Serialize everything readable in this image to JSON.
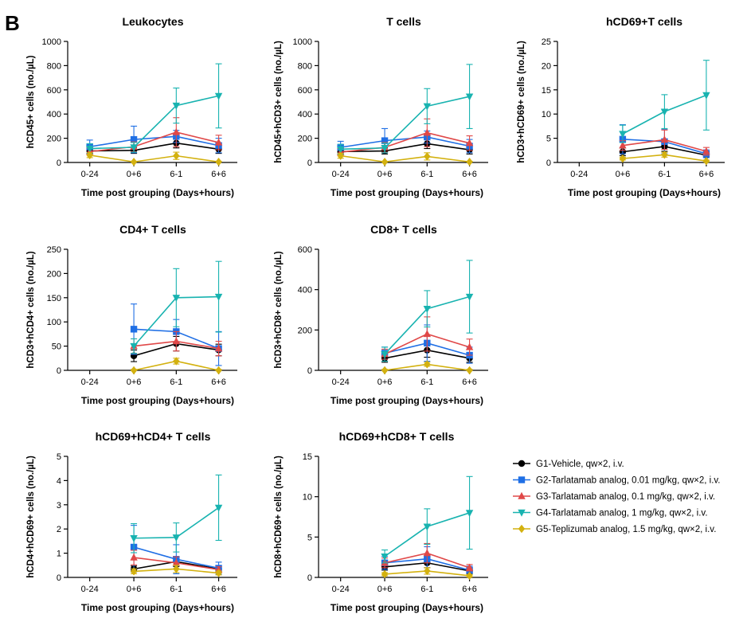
{
  "panel_label": "B",
  "legend": {
    "entries": [
      {
        "label": "G1-Vehicle, qw×2, i.v.",
        "color": "#000000",
        "marker": "circle"
      },
      {
        "label": "G2-Tarlatamab analog, 0.01 mg/kg, qw×2, i.v.",
        "color": "#1f6fe5",
        "marker": "square"
      },
      {
        "label": "G3-Tarlatamab analog, 0.1 mg/kg, qw×2, i.v.",
        "color": "#e04848",
        "marker": "triangle-up"
      },
      {
        "label": "G4-Tarlatamab analog, 1 mg/kg, qw×2, i.v.",
        "color": "#18b3b0",
        "marker": "triangle-down"
      },
      {
        "label": "G5-Teplizumab analog, 1.5 mg/kg, qw×2, i.v.",
        "color": "#d3b10f",
        "marker": "diamond"
      }
    ]
  },
  "chart_data": [
    {
      "type": "line",
      "title": "Leukocytes",
      "ylabel": "hCD45+ cells (no./µL)",
      "xlabel": "Time post grouping (Days+hours)",
      "categories": [
        "0-24",
        "0+6",
        "6-1",
        "6+6"
      ],
      "ylim": [
        0,
        1000
      ],
      "yticks": [
        0,
        200,
        400,
        600,
        800,
        1000
      ],
      "series": [
        {
          "name": "G1-Vehicle, qw×2, i.v.",
          "values": [
            95,
            100,
            160,
            110
          ],
          "errors": [
            20,
            25,
            40,
            35
          ]
        },
        {
          "name": "G2-Tarlatamab analog, 0.01 mg/kg, qw×2, i.v.",
          "values": [
            130,
            190,
            215,
            140
          ],
          "errors": [
            55,
            110,
            50,
            60
          ]
        },
        {
          "name": "G3-Tarlatamab analog, 0.1 mg/kg, qw×2, i.v.",
          "values": [
            90,
            130,
            250,
            165
          ],
          "errors": [
            30,
            40,
            120,
            60
          ]
        },
        {
          "name": "G4-Tarlatamab analog, 1 mg/kg, qw×2, i.v.",
          "values": [
            115,
            125,
            470,
            550
          ],
          "errors": [
            40,
            40,
            145,
            265
          ]
        },
        {
          "name": "G5-Teplizumab analog, 1.5 mg/kg, qw×2, i.v.",
          "values": [
            60,
            5,
            55,
            5
          ],
          "errors": [
            20,
            5,
            30,
            5
          ]
        }
      ]
    },
    {
      "type": "line",
      "title": "T cells",
      "ylabel": "hCD45+hCD3+ cells (no./µL)",
      "xlabel": "Time post grouping (Days+hours)",
      "categories": [
        "0-24",
        "0+6",
        "6-1",
        "6+6"
      ],
      "ylim": [
        0,
        1000
      ],
      "yticks": [
        0,
        200,
        400,
        600,
        800,
        1000
      ],
      "series": [
        {
          "name": "G1-Vehicle, qw×2, i.v.",
          "values": [
            90,
            95,
            155,
            105
          ],
          "errors": [
            20,
            25,
            40,
            35
          ]
        },
        {
          "name": "G2-Tarlatamab analog, 0.01 mg/kg, qw×2, i.v.",
          "values": [
            125,
            180,
            210,
            135
          ],
          "errors": [
            50,
            100,
            50,
            55
          ]
        },
        {
          "name": "G3-Tarlatamab analog, 0.1 mg/kg, qw×2, i.v.",
          "values": [
            85,
            125,
            245,
            160
          ],
          "errors": [
            30,
            40,
            115,
            60
          ]
        },
        {
          "name": "G4-Tarlatamab analog, 1 mg/kg, qw×2, i.v.",
          "values": [
            110,
            120,
            465,
            545
          ],
          "errors": [
            40,
            40,
            145,
            265
          ]
        },
        {
          "name": "G5-Teplizumab analog, 1.5 mg/kg, qw×2, i.v.",
          "values": [
            55,
            5,
            50,
            5
          ],
          "errors": [
            20,
            5,
            30,
            5
          ]
        }
      ]
    },
    {
      "type": "line",
      "title": "hCD69+T cells",
      "ylabel": "hCD3+hCD69+ cells (no./µL)",
      "xlabel": "Time post grouping (Days+hours)",
      "categories": [
        "0-24",
        "0+6",
        "6-1",
        "6+6"
      ],
      "ylim": [
        0,
        25
      ],
      "yticks": [
        0,
        5,
        10,
        15,
        20,
        25
      ],
      "series": [
        {
          "name": "G1-Vehicle, qw×2, i.v.",
          "values": [
            null,
            2.2,
            3.3,
            1.5
          ],
          "errors": [
            null,
            0.8,
            1.0,
            0.5
          ]
        },
        {
          "name": "G2-Tarlatamab analog, 0.01 mg/kg, qw×2, i.v.",
          "values": [
            null,
            4.8,
            4.3,
            1.8
          ],
          "errors": [
            null,
            3.0,
            2.5,
            0.8
          ]
        },
        {
          "name": "G3-Tarlatamab analog, 0.1 mg/kg, qw×2, i.v.",
          "values": [
            null,
            3.5,
            4.7,
            2.3
          ],
          "errors": [
            null,
            1.0,
            2.0,
            0.8
          ]
        },
        {
          "name": "G4-Tarlatamab analog, 1 mg/kg, qw×2, i.v.",
          "values": [
            null,
            5.9,
            10.5,
            13.9
          ],
          "errors": [
            null,
            1.8,
            3.5,
            7.2
          ]
        },
        {
          "name": "G5-Teplizumab analog, 1.5 mg/kg, qw×2, i.v.",
          "values": [
            null,
            0.8,
            1.6,
            0.3
          ],
          "errors": [
            null,
            0.3,
            0.5,
            0.2
          ]
        }
      ]
    },
    {
      "type": "line",
      "title": "CD4+ T cells",
      "ylabel": "hCD3+hCD4+ cells (no./µL)",
      "xlabel": "Time post grouping (Days+hours)",
      "categories": [
        "0-24",
        "0+6",
        "6-1",
        "6+6"
      ],
      "ylim": [
        0,
        250
      ],
      "yticks": [
        0,
        50,
        100,
        150,
        200,
        250
      ],
      "series": [
        {
          "name": "G1-Vehicle, qw×2, i.v.",
          "values": [
            null,
            30,
            55,
            42
          ],
          "errors": [
            null,
            12,
            15,
            12
          ]
        },
        {
          "name": "G2-Tarlatamab analog, 0.01 mg/kg, qw×2, i.v.",
          "values": [
            null,
            85,
            80,
            45
          ],
          "errors": [
            null,
            52,
            25,
            35
          ]
        },
        {
          "name": "G3-Tarlatamab analog, 0.1 mg/kg, qw×2, i.v.",
          "values": [
            null,
            50,
            60,
            45
          ],
          "errors": [
            null,
            15,
            20,
            15
          ]
        },
        {
          "name": "G4-Tarlatamab analog, 1 mg/kg, qw×2, i.v.",
          "values": [
            null,
            50,
            150,
            152
          ],
          "errors": [
            null,
            15,
            60,
            73
          ]
        },
        {
          "name": "G5-Teplizumab analog, 1.5 mg/kg, qw×2, i.v.",
          "values": [
            null,
            0,
            19,
            0
          ],
          "errors": [
            null,
            2,
            6,
            2
          ]
        }
      ]
    },
    {
      "type": "line",
      "title": "CD8+ T cells",
      "ylabel": "hCD3+hCD8+ cells (no./µL)",
      "xlabel": "Time post grouping (Days+hours)",
      "categories": [
        "0-24",
        "0+6",
        "6-1",
        "6+6"
      ],
      "ylim": [
        0,
        600
      ],
      "yticks": [
        0,
        200,
        400,
        600
      ],
      "series": [
        {
          "name": "G1-Vehicle, qw×2, i.v.",
          "values": [
            null,
            60,
            100,
            60
          ],
          "errors": [
            null,
            20,
            35,
            20
          ]
        },
        {
          "name": "G2-Tarlatamab analog, 0.01 mg/kg, qw×2, i.v.",
          "values": [
            null,
            85,
            135,
            75
          ],
          "errors": [
            null,
            30,
            90,
            40
          ]
        },
        {
          "name": "G3-Tarlatamab analog, 0.1 mg/kg, qw×2, i.v.",
          "values": [
            null,
            80,
            180,
            115
          ],
          "errors": [
            null,
            25,
            85,
            40
          ]
        },
        {
          "name": "G4-Tarlatamab analog, 1 mg/kg, qw×2, i.v.",
          "values": [
            null,
            80,
            305,
            365
          ],
          "errors": [
            null,
            35,
            90,
            180
          ]
        },
        {
          "name": "G5-Teplizumab analog, 1.5 mg/kg, qw×2, i.v.",
          "values": [
            null,
            0,
            30,
            0
          ],
          "errors": [
            null,
            5,
            10,
            5
          ]
        }
      ]
    },
    {
      "type": "line",
      "title": "hCD69+hCD4+ T cells",
      "ylabel": "hCD4+hCD69+ cells (no./µL)",
      "xlabel": "Time post grouping (Days+hours)",
      "categories": [
        "0-24",
        "0+6",
        "6-1",
        "6+6"
      ],
      "ylim": [
        0,
        5
      ],
      "yticks": [
        0,
        1,
        2,
        3,
        4,
        5
      ],
      "series": [
        {
          "name": "G1-Vehicle, qw×2, i.v.",
          "values": [
            null,
            0.35,
            0.65,
            0.35
          ],
          "errors": [
            null,
            0.12,
            0.2,
            0.1
          ]
        },
        {
          "name": "G2-Tarlatamab analog, 0.01 mg/kg, qw×2, i.v.",
          "values": [
            null,
            1.25,
            0.75,
            0.38
          ],
          "errors": [
            null,
            0.9,
            0.6,
            0.25
          ]
        },
        {
          "name": "G3-Tarlatamab analog, 0.1 mg/kg, qw×2, i.v.",
          "values": [
            null,
            0.82,
            0.6,
            0.32
          ],
          "errors": [
            null,
            0.3,
            0.25,
            0.12
          ]
        },
        {
          "name": "G4-Tarlatamab analog, 1 mg/kg, qw×2, i.v.",
          "values": [
            null,
            1.62,
            1.65,
            2.88
          ],
          "errors": [
            null,
            0.6,
            0.6,
            1.35
          ]
        },
        {
          "name": "G5-Teplizumab analog, 1.5 mg/kg, qw×2, i.v.",
          "values": [
            null,
            0.25,
            0.35,
            0.18
          ],
          "errors": [
            null,
            0.1,
            0.15,
            0.08
          ]
        }
      ]
    },
    {
      "type": "line",
      "title": "hCD69+hCD8+ T cells",
      "ylabel": "hCD8+hCD69+ cells (no./µL)",
      "xlabel": "Time post grouping (Days+hours)",
      "categories": [
        "0-24",
        "0+6",
        "6-1",
        "6+6"
      ],
      "ylim": [
        0,
        15
      ],
      "yticks": [
        0,
        5,
        10,
        15
      ],
      "series": [
        {
          "name": "G1-Vehicle, qw×2, i.v.",
          "values": [
            null,
            1.3,
            1.8,
            0.8
          ],
          "errors": [
            null,
            0.4,
            0.6,
            0.3
          ]
        },
        {
          "name": "G2-Tarlatamab analog, 0.01 mg/kg, qw×2, i.v.",
          "values": [
            null,
            1.8,
            2.3,
            0.9
          ],
          "errors": [
            null,
            0.8,
            1.5,
            0.5
          ]
        },
        {
          "name": "G3-Tarlatamab analog, 0.1 mg/kg, qw×2, i.v.",
          "values": [
            null,
            1.8,
            3.0,
            1.2
          ],
          "errors": [
            null,
            0.6,
            1.2,
            0.4
          ]
        },
        {
          "name": "G4-Tarlatamab analog, 1 mg/kg, qw×2, i.v.",
          "values": [
            null,
            2.6,
            6.3,
            8.0
          ],
          "errors": [
            null,
            0.8,
            2.2,
            4.5
          ]
        },
        {
          "name": "G5-Teplizumab analog, 1.5 mg/kg, qw×2, i.v.",
          "values": [
            null,
            0.4,
            0.8,
            0.2
          ],
          "errors": [
            null,
            0.2,
            0.4,
            0.15
          ]
        }
      ]
    }
  ]
}
